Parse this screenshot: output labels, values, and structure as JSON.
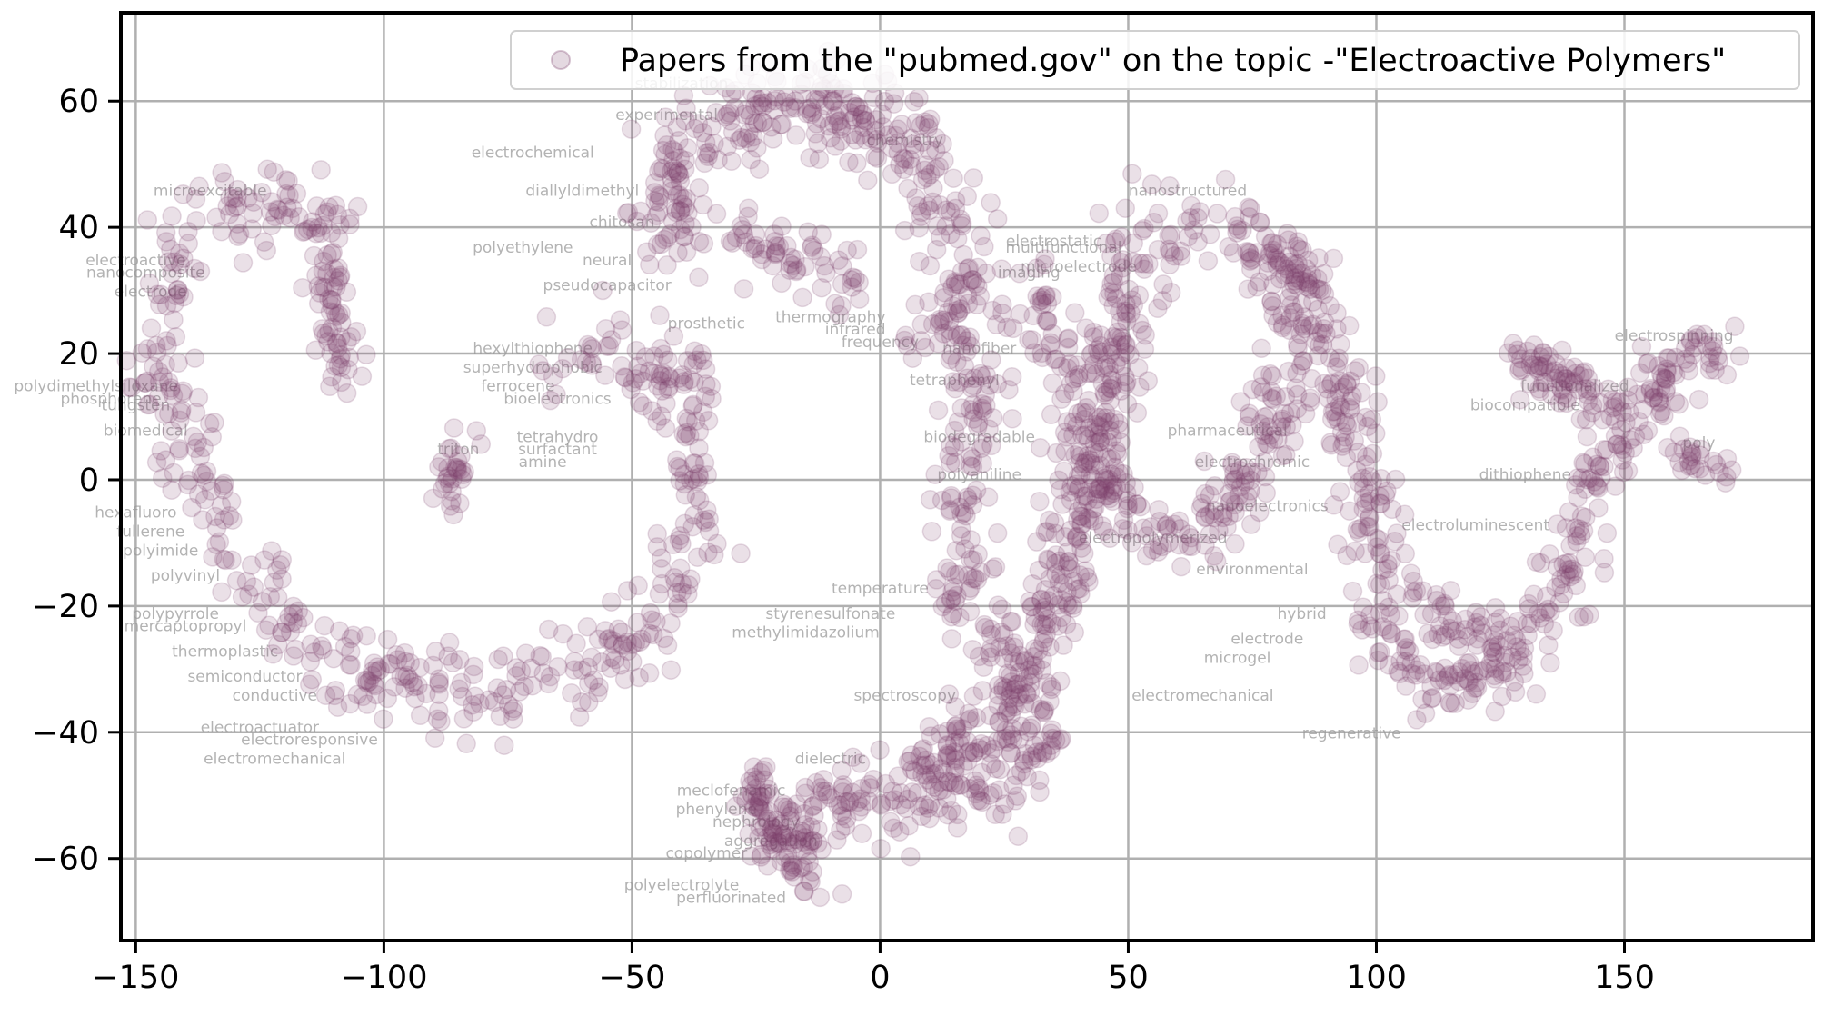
{
  "chart_data": {
    "type": "scatter",
    "title": "",
    "xlabel": "",
    "ylabel": "",
    "xlim": [
      -153,
      188
    ],
    "ylim": [
      -73,
      74
    ],
    "xticks": [
      -150,
      -100,
      -50,
      0,
      50,
      100,
      150
    ],
    "yticks": [
      -60,
      -40,
      -20,
      0,
      20,
      40,
      60
    ],
    "xtick_labels": [
      "−150",
      "−100",
      "−50",
      "0",
      "50",
      "100",
      "150"
    ],
    "ytick_labels": [
      "−60",
      "−40",
      "−20",
      "0",
      "20",
      "40",
      "60"
    ],
    "grid": true,
    "legend_position": "top-right",
    "marker_color": "#7a3f6b",
    "grid_color": "#b0b0b0",
    "series": [
      {
        "name": "Papers from the \"pubmed.gov\" on the topic -\"Electroactive Polymers\"",
        "clusters": [
          {
            "path": [
              [
                -108,
                42
              ],
              [
                -125,
                43
              ],
              [
                -140,
                40
              ],
              [
                -145,
                28
              ],
              [
                -145,
                15
              ],
              [
                -138,
                2
              ],
              [
                -128,
                -12
              ],
              [
                -118,
                -25
              ],
              [
                -100,
                -32
              ],
              [
                -80,
                -34
              ],
              [
                -60,
                -30
              ],
              [
                -45,
                -22
              ],
              [
                -38,
                -10
              ],
              [
                -35,
                3
              ],
              [
                -40,
                15
              ],
              [
                -52,
                20
              ],
              [
                -65,
                18
              ]
            ],
            "spread": 5.5,
            "count": 520
          },
          {
            "path": [
              [
                -112,
                36
              ],
              [
                -110,
                26
              ],
              [
                -106,
                15
              ]
            ],
            "spread": 3.5,
            "count": 60
          },
          {
            "path": [
              [
                -88,
                -5
              ],
              [
                -85,
                3
              ],
              [
                -82,
                8
              ]
            ],
            "spread": 3,
            "count": 30
          },
          {
            "path": [
              [
                -40,
                36
              ],
              [
                -45,
                45
              ],
              [
                -38,
                53
              ],
              [
                -25,
                60
              ],
              [
                -8,
                60
              ],
              [
                5,
                52
              ],
              [
                12,
                45
              ],
              [
                17,
                36
              ],
              [
                16,
                26
              ],
              [
                10,
                20
              ]
            ],
            "spread": 6,
            "count": 360
          },
          {
            "path": [
              [
                -28,
                38
              ],
              [
                -18,
                35
              ],
              [
                -10,
                32
              ],
              [
                -5,
                30
              ]
            ],
            "spread": 4,
            "count": 60
          },
          {
            "path": [
              [
                48,
                38
              ],
              [
                60,
                41
              ],
              [
                72,
                40
              ],
              [
                80,
                37
              ],
              [
                85,
                28
              ],
              [
                82,
                15
              ],
              [
                78,
                5
              ],
              [
                70,
                -5
              ],
              [
                60,
                -10
              ],
              [
                48,
                -5
              ],
              [
                42,
                5
              ],
              [
                38,
                18
              ],
              [
                32,
                25
              ],
              [
                28,
                30
              ]
            ],
            "spread": 5.5,
            "count": 330
          },
          {
            "path": [
              [
                10,
                -48
              ],
              [
                25,
                -35
              ],
              [
                35,
                -20
              ],
              [
                40,
                -5
              ],
              [
                44,
                8
              ],
              [
                48,
                20
              ],
              [
                50,
                32
              ]
            ],
            "spread": 5.5,
            "count": 320
          },
          {
            "path": [
              [
                -12,
                -64
              ],
              [
                -18,
                -58
              ],
              [
                -12,
                -52
              ],
              [
                0,
                -50
              ],
              [
                12,
                -50
              ],
              [
                25,
                -48
              ],
              [
                32,
                -42
              ],
              [
                30,
                -32
              ],
              [
                22,
                -25
              ],
              [
                15,
                -10
              ],
              [
                18,
                5
              ],
              [
                22,
                18
              ]
            ],
            "spread": 5.5,
            "count": 330
          },
          {
            "path": [
              [
                -25,
                -48
              ],
              [
                -22,
                -55
              ],
              [
                -15,
                -60
              ]
            ],
            "spread": 4,
            "count": 80
          },
          {
            "path": [
              [
                75,
                35
              ],
              [
                85,
                30
              ],
              [
                92,
                20
              ],
              [
                95,
                8
              ],
              [
                100,
                -5
              ],
              [
                102,
                -15
              ],
              [
                100,
                -25
              ],
              [
                108,
                -30
              ],
              [
                118,
                -32
              ],
              [
                128,
                -28
              ],
              [
                135,
                -20
              ],
              [
                140,
                -8
              ],
              [
                145,
                2
              ],
              [
                150,
                10
              ],
              [
                158,
                16
              ],
              [
                165,
                19
              ],
              [
                170,
                20
              ]
            ],
            "spread": 5,
            "count": 440
          },
          {
            "path": [
              [
                130,
                18
              ],
              [
                138,
                15
              ],
              [
                145,
                12
              ]
            ],
            "spread": 4,
            "count": 70
          },
          {
            "path": [
              [
                160,
                5
              ],
              [
                166,
                2
              ],
              [
                170,
                1
              ]
            ],
            "spread": 2.5,
            "count": 25
          },
          {
            "path": [
              [
                112,
                -20
              ],
              [
                120,
                -25
              ],
              [
                125,
                -22
              ]
            ],
            "spread": 3.5,
            "count": 40
          }
        ]
      }
    ],
    "word_labels": [
      {
        "text": "microexcitable",
        "x": -135,
        "y": 45
      },
      {
        "text": "nanostructured",
        "x": 62,
        "y": 45
      },
      {
        "text": "electrochemical",
        "x": -70,
        "y": 51
      },
      {
        "text": "diallyldimethyl",
        "x": -60,
        "y": 45
      },
      {
        "text": "polyethylene",
        "x": -72,
        "y": 36
      },
      {
        "text": "electroactive",
        "x": -150,
        "y": 34
      },
      {
        "text": "nanocomposite",
        "x": -148,
        "y": 32
      },
      {
        "text": "electrode",
        "x": -147,
        "y": 29
      },
      {
        "text": "multifunctional",
        "x": 37,
        "y": 36
      },
      {
        "text": "electrostatic",
        "x": 35,
        "y": 37
      },
      {
        "text": "microelectrode",
        "x": 40,
        "y": 33
      },
      {
        "text": "imaging",
        "x": 30,
        "y": 32
      },
      {
        "text": "pseudocapacitor",
        "x": -55,
        "y": 30
      },
      {
        "text": "neural",
        "x": -55,
        "y": 34
      },
      {
        "text": "thermography",
        "x": -10,
        "y": 25
      },
      {
        "text": "infrared",
        "x": -5,
        "y": 23
      },
      {
        "text": "frequency",
        "x": 0,
        "y": 21
      },
      {
        "text": "nanofiber",
        "x": 20,
        "y": 20
      },
      {
        "text": "prosthetic",
        "x": -35,
        "y": 24
      },
      {
        "text": "hexylthiophene",
        "x": -70,
        "y": 20
      },
      {
        "text": "superhydrophobic",
        "x": -70,
        "y": 17
      },
      {
        "text": "ferrocene",
        "x": -73,
        "y": 14
      },
      {
        "text": "tetraphenyl",
        "x": 15,
        "y": 15
      },
      {
        "text": "bioelectronics",
        "x": -65,
        "y": 12
      },
      {
        "text": "polydimethylsiloxane",
        "x": -158,
        "y": 14
      },
      {
        "text": "phosphorene",
        "x": -155,
        "y": 12
      },
      {
        "text": "tungsten",
        "x": -150,
        "y": 11
      },
      {
        "text": "biomedical",
        "x": -148,
        "y": 7
      },
      {
        "text": "tetrahydro",
        "x": -65,
        "y": 6
      },
      {
        "text": "surfactant",
        "x": -65,
        "y": 4
      },
      {
        "text": "triton",
        "x": -85,
        "y": 4
      },
      {
        "text": "amine",
        "x": -68,
        "y": 2
      },
      {
        "text": "biodegradable",
        "x": 20,
        "y": 6
      },
      {
        "text": "polyaniline",
        "x": 20,
        "y": 0
      },
      {
        "text": "pharmaceutical",
        "x": 70,
        "y": 7
      },
      {
        "text": "electrochromic",
        "x": 75,
        "y": 2
      },
      {
        "text": "nanoelectronics",
        "x": 78,
        "y": -5
      },
      {
        "text": "electrospinning",
        "x": 160,
        "y": 22
      },
      {
        "text": "biocompatible",
        "x": 130,
        "y": 11
      },
      {
        "text": "functionalized",
        "x": 140,
        "y": 14
      },
      {
        "text": "poly",
        "x": 165,
        "y": 5
      },
      {
        "text": "dithiophene",
        "x": 130,
        "y": 0
      },
      {
        "text": "electroluminescent",
        "x": 120,
        "y": -8
      },
      {
        "text": "hexafluoro",
        "x": -150,
        "y": -6
      },
      {
        "text": "fullerene",
        "x": -147,
        "y": -9
      },
      {
        "text": "polyimide",
        "x": -145,
        "y": -12
      },
      {
        "text": "polyvinyl",
        "x": -140,
        "y": -16
      },
      {
        "text": "polypyrrole",
        "x": -142,
        "y": -22
      },
      {
        "text": "mercaptopropyl",
        "x": -140,
        "y": -24
      },
      {
        "text": "thermoplastic",
        "x": -132,
        "y": -28
      },
      {
        "text": "semiconductor",
        "x": -128,
        "y": -32
      },
      {
        "text": "conductive",
        "x": -122,
        "y": -35
      },
      {
        "text": "electroactuator",
        "x": -125,
        "y": -40
      },
      {
        "text": "electroresponsive",
        "x": -115,
        "y": -42
      },
      {
        "text": "electromechanical",
        "x": -122,
        "y": -45
      },
      {
        "text": "electropolymerized",
        "x": 55,
        "y": -10
      },
      {
        "text": "environmental",
        "x": 75,
        "y": -15
      },
      {
        "text": "hybrid",
        "x": 85,
        "y": -22
      },
      {
        "text": "electrode",
        "x": 78,
        "y": -26
      },
      {
        "text": "microgel",
        "x": 72,
        "y": -29
      },
      {
        "text": "electromechanical",
        "x": 65,
        "y": -35
      },
      {
        "text": "regenerative",
        "x": 95,
        "y": -41
      },
      {
        "text": "styrenesulfonate",
        "x": -10,
        "y": -22
      },
      {
        "text": "methylimidazolium",
        "x": -15,
        "y": -25
      },
      {
        "text": "temperature",
        "x": 0,
        "y": -18
      },
      {
        "text": "spectroscopy",
        "x": 5,
        "y": -35
      },
      {
        "text": "dielectric",
        "x": -10,
        "y": -45
      },
      {
        "text": "meclofenamic",
        "x": -30,
        "y": -50
      },
      {
        "text": "phenylene",
        "x": -33,
        "y": -53
      },
      {
        "text": "nephrology",
        "x": -25,
        "y": -55
      },
      {
        "text": "aggregation",
        "x": -22,
        "y": -58
      },
      {
        "text": "copolymer",
        "x": -35,
        "y": -60
      },
      {
        "text": "polyelectrolyte",
        "x": -40,
        "y": -65
      },
      {
        "text": "perfluorinated",
        "x": -30,
        "y": -67
      },
      {
        "text": "chemistry",
        "x": 5,
        "y": 53
      },
      {
        "text": "experimental",
        "x": -43,
        "y": 57
      },
      {
        "text": "stabilization",
        "x": -40,
        "y": 62
      },
      {
        "text": "chitosan",
        "x": -52,
        "y": 40
      }
    ]
  }
}
